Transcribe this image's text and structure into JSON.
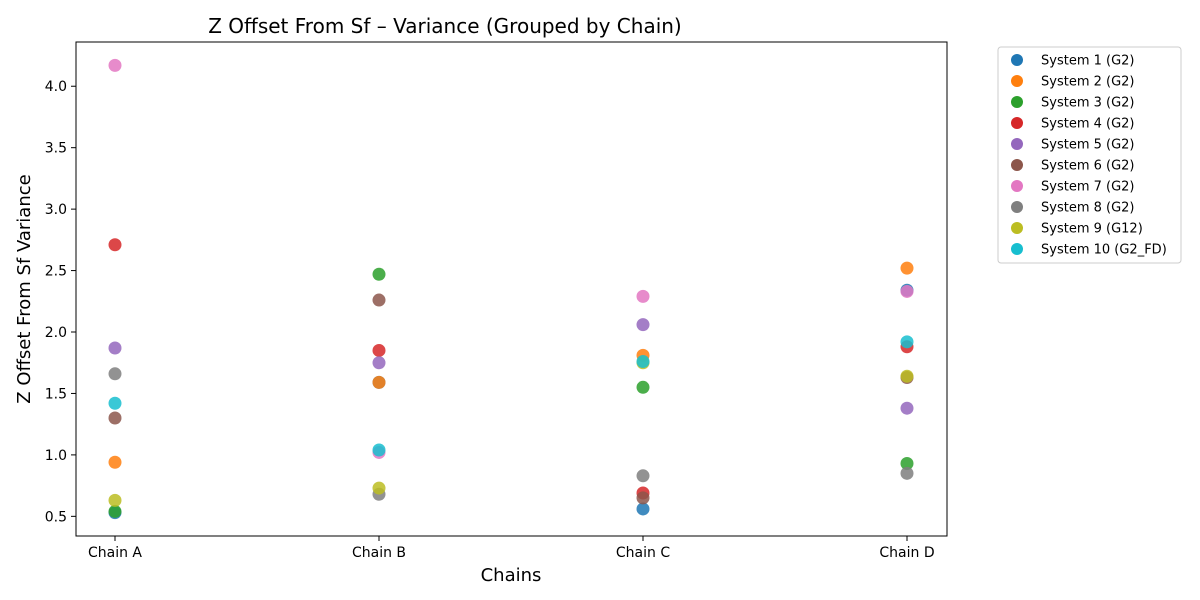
{
  "chart_data": {
    "type": "scatter",
    "title": "Z Offset From Sf – Variance (Grouped by Chain)",
    "xlabel": "Chains",
    "ylabel": "Z Offset From Sf Variance",
    "categories": [
      "Chain A",
      "Chain B",
      "Chain C",
      "Chain D"
    ],
    "ylim": [
      0.34,
      4.36
    ],
    "yticks": [
      0.5,
      1.0,
      1.5,
      2.0,
      2.5,
      3.0,
      3.5,
      4.0
    ],
    "ytick_labels": [
      "0.5",
      "1.0",
      "1.5",
      "2.0",
      "2.5",
      "3.0",
      "3.5",
      "4.0"
    ],
    "grid": false,
    "legend_position": "outside-right-top",
    "series": [
      {
        "name": "System 1 (G2)",
        "color": "#1f77b4",
        "values": [
          0.53,
          1.59,
          0.56,
          2.34
        ]
      },
      {
        "name": "System 2 (G2)",
        "color": "#ff7f0e",
        "values": [
          0.94,
          1.59,
          1.81,
          2.52
        ]
      },
      {
        "name": "System 3 (G2)",
        "color": "#2ca02c",
        "values": [
          0.54,
          2.47,
          1.55,
          0.93
        ]
      },
      {
        "name": "System 4 (G2)",
        "color": "#d62728",
        "values": [
          2.71,
          1.85,
          0.69,
          1.88
        ]
      },
      {
        "name": "System 5 (G2)",
        "color": "#9467bd",
        "values": [
          1.87,
          1.75,
          2.06,
          1.38
        ]
      },
      {
        "name": "System 6 (G2)",
        "color": "#8c564b",
        "values": [
          1.3,
          2.26,
          0.65,
          1.63
        ]
      },
      {
        "name": "System 7 (G2)",
        "color": "#e377c2",
        "values": [
          4.17,
          1.02,
          2.29,
          2.33
        ]
      },
      {
        "name": "System 8 (G2)",
        "color": "#7f7f7f",
        "values": [
          1.66,
          0.68,
          0.83,
          0.85
        ]
      },
      {
        "name": "System 9 (G12)",
        "color": "#bcbd22",
        "values": [
          0.63,
          0.73,
          1.75,
          1.64
        ]
      },
      {
        "name": "System 10 (G2_FD)",
        "color": "#17becf",
        "values": [
          1.42,
          1.04,
          1.76,
          1.92
        ]
      }
    ]
  }
}
